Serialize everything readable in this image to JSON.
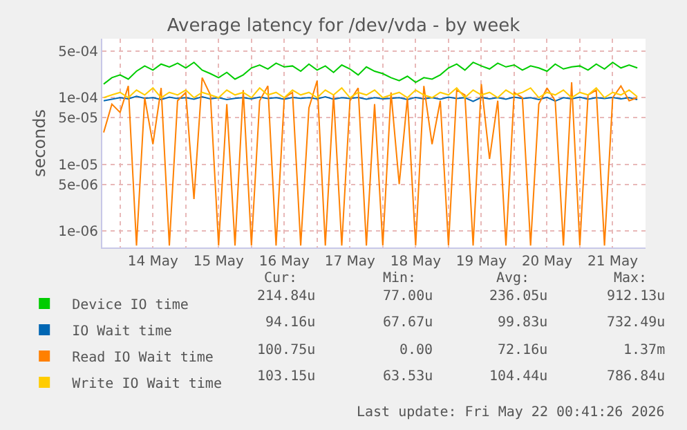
{
  "chart_data": {
    "type": "line",
    "title": "Average latency for /dev/vda - by week",
    "ylabel": "seconds",
    "x": [
      "2026-05-13T18:00",
      "2026-05-13T21:00",
      "2026-05-14T00:00",
      "2026-05-14T03:00",
      "2026-05-14T06:00",
      "2026-05-14T09:00",
      "2026-05-14T12:00",
      "2026-05-14T15:00",
      "2026-05-14T18:00",
      "2026-05-14T21:00",
      "2026-05-15T00:00",
      "2026-05-15T03:00",
      "2026-05-15T06:00",
      "2026-05-15T09:00",
      "2026-05-15T12:00",
      "2026-05-15T15:00",
      "2026-05-15T18:00",
      "2026-05-15T21:00",
      "2026-05-16T00:00",
      "2026-05-16T03:00",
      "2026-05-16T06:00",
      "2026-05-16T09:00",
      "2026-05-16T12:00",
      "2026-05-16T15:00",
      "2026-05-16T18:00",
      "2026-05-16T21:00",
      "2026-05-17T00:00",
      "2026-05-17T03:00",
      "2026-05-17T06:00",
      "2026-05-17T09:00",
      "2026-05-17T12:00",
      "2026-05-17T15:00",
      "2026-05-17T18:00",
      "2026-05-17T21:00",
      "2026-05-18T00:00",
      "2026-05-18T03:00",
      "2026-05-18T06:00",
      "2026-05-18T09:00",
      "2026-05-18T12:00",
      "2026-05-18T15:00",
      "2026-05-18T18:00",
      "2026-05-18T21:00",
      "2026-05-19T00:00",
      "2026-05-19T03:00",
      "2026-05-19T06:00",
      "2026-05-19T09:00",
      "2026-05-19T12:00",
      "2026-05-19T15:00",
      "2026-05-19T18:00",
      "2026-05-19T21:00",
      "2026-05-20T00:00",
      "2026-05-20T03:00",
      "2026-05-20T06:00",
      "2026-05-20T09:00",
      "2026-05-20T12:00",
      "2026-05-20T15:00",
      "2026-05-20T18:00",
      "2026-05-20T21:00",
      "2026-05-21T00:00",
      "2026-05-21T03:00",
      "2026-05-21T06:00",
      "2026-05-21T09:00",
      "2026-05-21T12:00",
      "2026-05-21T15:00",
      "2026-05-21T18:00",
      "2026-05-21T21:00"
    ],
    "series": [
      {
        "name": "Device IO time",
        "color": "#00cc00",
        "values": [
          0.00016,
          0.0002,
          0.00022,
          0.00019,
          0.00025,
          0.0003,
          0.00026,
          0.00032,
          0.00029,
          0.00033,
          0.00028,
          0.00034,
          0.00026,
          0.00023,
          0.0002,
          0.00024,
          0.00019,
          0.00022,
          0.00028,
          0.00031,
          0.00027,
          0.00033,
          0.00029,
          0.0003,
          0.00025,
          0.00032,
          0.00026,
          0.0003,
          0.00024,
          0.00031,
          0.00027,
          0.00022,
          0.00029,
          0.00025,
          0.00023,
          0.0002,
          0.00018,
          0.00021,
          0.00017,
          0.0002,
          0.00019,
          0.00022,
          0.00028,
          0.00032,
          0.00026,
          0.00034,
          0.0003,
          0.00027,
          0.00033,
          0.00029,
          0.00031,
          0.00026,
          0.0003,
          0.00028,
          0.00025,
          0.00032,
          0.00027,
          0.00029,
          0.0003,
          0.00026,
          0.00032,
          0.00027,
          0.00034,
          0.00028,
          0.00031,
          0.00028
        ]
      },
      {
        "name": "IO Wait time",
        "color": "#0066b3",
        "values": [
          9e-05,
          9.5e-05,
          0.0001,
          9.6e-05,
          0.000105,
          9.8e-05,
          0.0001,
          9.4e-05,
          0.000102,
          9.7e-05,
          0.0001,
          9.5e-05,
          0.000103,
          9.6e-05,
          0.0001,
          9.4e-05,
          9.8e-05,
          0.0001,
          9.6e-05,
          0.000102,
          9.7e-05,
          0.0001,
          9.5e-05,
          0.000101,
          9.8e-05,
          0.0001,
          9.6e-05,
          0.000103,
          9.5e-05,
          0.0001,
          9.7e-05,
          0.000101,
          9.5e-05,
          0.0001,
          9.6e-05,
          9.8e-05,
          0.0001,
          9.4e-05,
          0.000101,
          9.6e-05,
          0.0001,
          9.5e-05,
          0.000102,
          9.7e-05,
          0.0001,
          8.8e-05,
          0.000101,
          9.6e-05,
          0.0001,
          9.5e-05,
          0.000102,
          9.7e-05,
          0.0001,
          9.4e-05,
          0.000101,
          8.9e-05,
          0.0001,
          9.6e-05,
          0.000102,
          9.5e-05,
          0.0001,
          9.7e-05,
          0.000101,
          9.6e-05,
          0.0001,
          9.4e-05
        ]
      },
      {
        "name": "Read IO Wait time",
        "color": "#ff8000",
        "values": [
          3e-05,
          8e-05,
          6e-05,
          0.00015,
          6e-07,
          0.0001,
          2e-05,
          0.00014,
          6e-07,
          9e-05,
          0.00012,
          3e-06,
          0.0002,
          0.00011,
          6e-07,
          8e-05,
          6e-07,
          0.00013,
          6e-07,
          9e-05,
          0.00015,
          6e-07,
          0.0001,
          0.00012,
          6e-07,
          7e-05,
          0.00018,
          6e-07,
          0.00011,
          6e-07,
          9e-05,
          0.00014,
          6e-07,
          8e-05,
          6e-07,
          0.00012,
          5e-06,
          0.0001,
          6e-07,
          0.00015,
          2e-05,
          9e-05,
          6e-07,
          0.00013,
          0.00011,
          6e-07,
          0.00016,
          1.2e-05,
          9e-05,
          6e-07,
          0.00012,
          0.0001,
          6e-07,
          8e-05,
          0.00014,
          9e-05,
          6e-07,
          0.00017,
          6e-07,
          0.00011,
          0.00013,
          6e-07,
          0.0001,
          0.00015,
          9e-05,
          0.0001
        ]
      },
      {
        "name": "Write IO Wait time",
        "color": "#ffcc00",
        "values": [
          0.0001,
          0.00011,
          0.00012,
          0.0001,
          0.00013,
          0.00011,
          0.00014,
          0.0001,
          0.00012,
          0.00011,
          0.00013,
          0.0001,
          0.00012,
          0.00011,
          0.0001,
          0.00013,
          0.00011,
          0.00012,
          0.0001,
          0.00014,
          0.00011,
          0.00012,
          0.0001,
          0.00013,
          0.00011,
          0.00012,
          0.0001,
          0.00013,
          0.00011,
          0.00014,
          0.0001,
          0.00012,
          0.00011,
          0.00013,
          0.0001,
          0.00011,
          0.00012,
          0.0001,
          0.00013,
          0.00011,
          0.0001,
          0.00012,
          0.00011,
          0.00014,
          0.0001,
          0.00013,
          0.00011,
          0.00012,
          0.0001,
          0.00013,
          0.00011,
          0.00012,
          0.00014,
          0.0001,
          0.00012,
          0.00011,
          0.00013,
          0.0001,
          0.00012,
          0.00011,
          0.00014,
          0.0001,
          0.00012,
          0.00011,
          0.00013,
          0.000103
        ]
      }
    ],
    "xlim": [
      "2026-05-13T17:30",
      "2026-05-22T00:00"
    ],
    "xticks": [
      {
        "value": "2026-05-14",
        "label": null
      },
      {
        "value": "2026-05-14T12:00",
        "label": "14 May"
      },
      {
        "value": "2026-05-15",
        "label": null
      },
      {
        "value": "2026-05-15T12:00",
        "label": "15 May"
      },
      {
        "value": "2026-05-16",
        "label": null
      },
      {
        "value": "2026-05-16T12:00",
        "label": "16 May"
      },
      {
        "value": "2026-05-17",
        "label": null
      },
      {
        "value": "2026-05-17T12:00",
        "label": "17 May"
      },
      {
        "value": "2026-05-18",
        "label": null
      },
      {
        "value": "2026-05-18T12:00",
        "label": "18 May"
      },
      {
        "value": "2026-05-19",
        "label": null
      },
      {
        "value": "2026-05-19T12:00",
        "label": "19 May"
      },
      {
        "value": "2026-05-20",
        "label": null
      },
      {
        "value": "2026-05-20T12:00",
        "label": "20 May"
      },
      {
        "value": "2026-05-21",
        "label": null
      },
      {
        "value": "2026-05-21T12:00",
        "label": "21 May"
      }
    ],
    "ylim": [
      5.6e-07,
      0.00077
    ],
    "log": true,
    "yticks": [
      {
        "value": 1e-06,
        "label": "1e-06"
      },
      {
        "value": 5e-06,
        "label": "5e-06"
      },
      {
        "value": 1e-05,
        "label": "1e-05"
      },
      {
        "value": 5e-05,
        "label": "5e-05"
      },
      {
        "value": 0.0001,
        "label": "1e-04"
      },
      {
        "value": 0.0005,
        "label": "5e-04"
      }
    ],
    "grid": true,
    "legend": "bottom",
    "marker": "none",
    "line_style": "solid",
    "annotations": [
      "Cur:",
      "Min:",
      "Avg:",
      "Max:",
      "214.84u",
      "77.00u",
      "236.05u",
      "912.13u",
      "94.16u",
      "67.67u",
      "99.83u",
      "732.49u",
      "100.75u",
      "0.00",
      "72.16u",
      "1.37m",
      "103.15u",
      "63.53u",
      "104.44u",
      "786.84u",
      "Last update: Fri May 22 00:41:26 2026"
    ]
  }
}
